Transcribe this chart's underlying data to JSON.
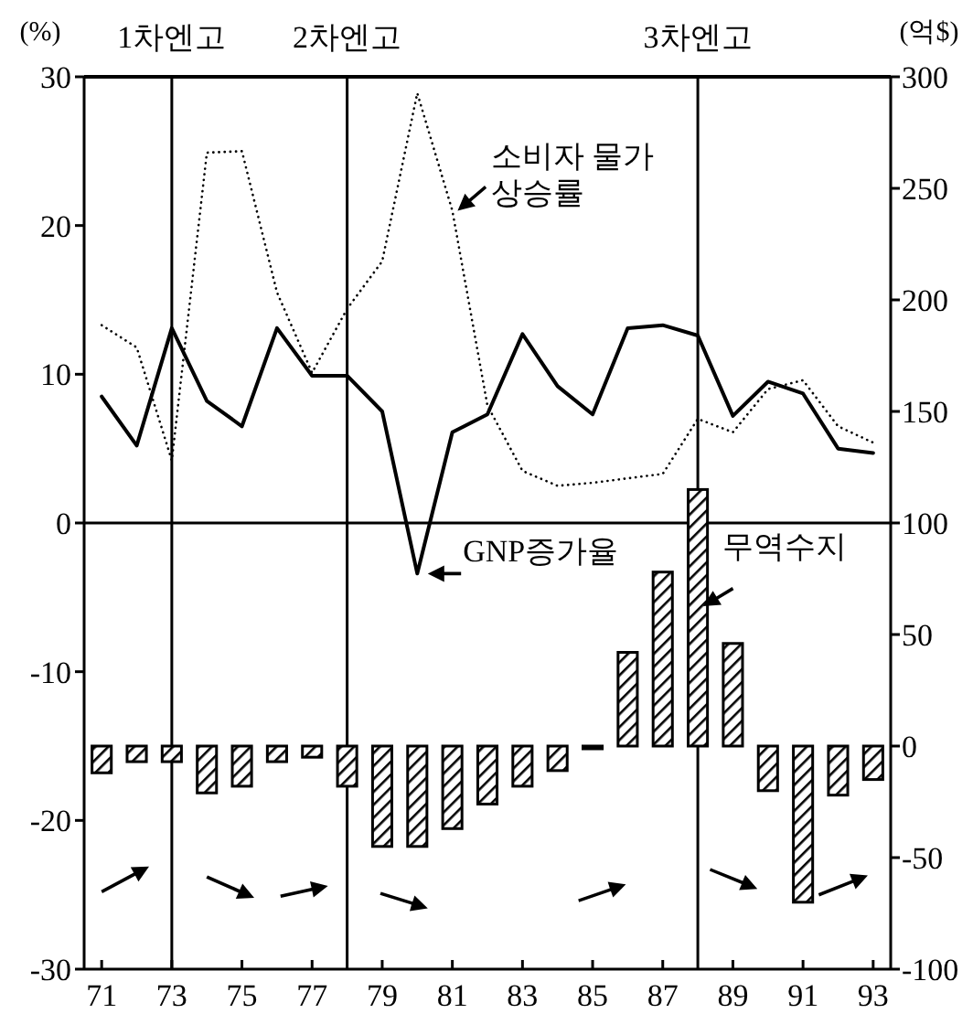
{
  "chart_data": {
    "type": "bar",
    "x": [
      71,
      72,
      73,
      74,
      75,
      76,
      77,
      78,
      79,
      80,
      81,
      82,
      83,
      84,
      85,
      86,
      87,
      88,
      89,
      90,
      91,
      92,
      93
    ],
    "xlim": [
      70.5,
      93.5
    ],
    "xticks": [
      71,
      73,
      75,
      77,
      79,
      81,
      83,
      85,
      87,
      89,
      91,
      93
    ],
    "ylabel": "(%)",
    "y2label": "(억$)",
    "ylim": [
      -30,
      30
    ],
    "yticks": [
      -30,
      -20,
      -10,
      0,
      10,
      20,
      30
    ],
    "y2lim": [
      -100,
      300
    ],
    "y2ticks": [
      -100,
      -50,
      0,
      50,
      100,
      150,
      200,
      250,
      300
    ],
    "series": [
      {
        "name": "소비자 물가\n상승률",
        "type": "line",
        "line_style": "dotted",
        "color": "#000000",
        "values": [
          13.3,
          11.8,
          4.2,
          24.9,
          25.0,
          15.5,
          10.1,
          14.4,
          17.6,
          28.9,
          21.0,
          7.9,
          3.5,
          2.5,
          2.7,
          3.0,
          3.3,
          7.0,
          6.1,
          9.0,
          9.6,
          6.5,
          5.4
        ]
      },
      {
        "name": "GNP증가율",
        "type": "line",
        "line_style": "solid",
        "color": "#000000",
        "values": [
          8.5,
          5.2,
          13.1,
          8.2,
          6.5,
          13.1,
          9.9,
          9.9,
          7.5,
          -3.4,
          6.1,
          7.3,
          12.7,
          9.2,
          7.3,
          13.1,
          13.3,
          12.6,
          7.2,
          9.5,
          8.7,
          5.0,
          4.7
        ]
      },
      {
        "name": "무역수지",
        "axis": "y2",
        "color": "#000000",
        "values": [
          -12,
          -7,
          -7,
          -21,
          -18,
          -7,
          -5,
          -18,
          -45,
          -45,
          -37,
          -26,
          -18,
          -11,
          -1,
          42,
          78,
          115,
          46,
          -20,
          -70,
          -22,
          -15
        ]
      }
    ],
    "ref_lines": [
      {
        "axis": "x",
        "value": 73,
        "label": "1차엔고"
      },
      {
        "axis": "x",
        "value": 78,
        "label": "2차엔고"
      },
      {
        "axis": "x",
        "value": 88,
        "label": "3차엔고"
      },
      {
        "axis": "y",
        "value": 0
      }
    ],
    "grid": false,
    "marker": "none"
  }
}
